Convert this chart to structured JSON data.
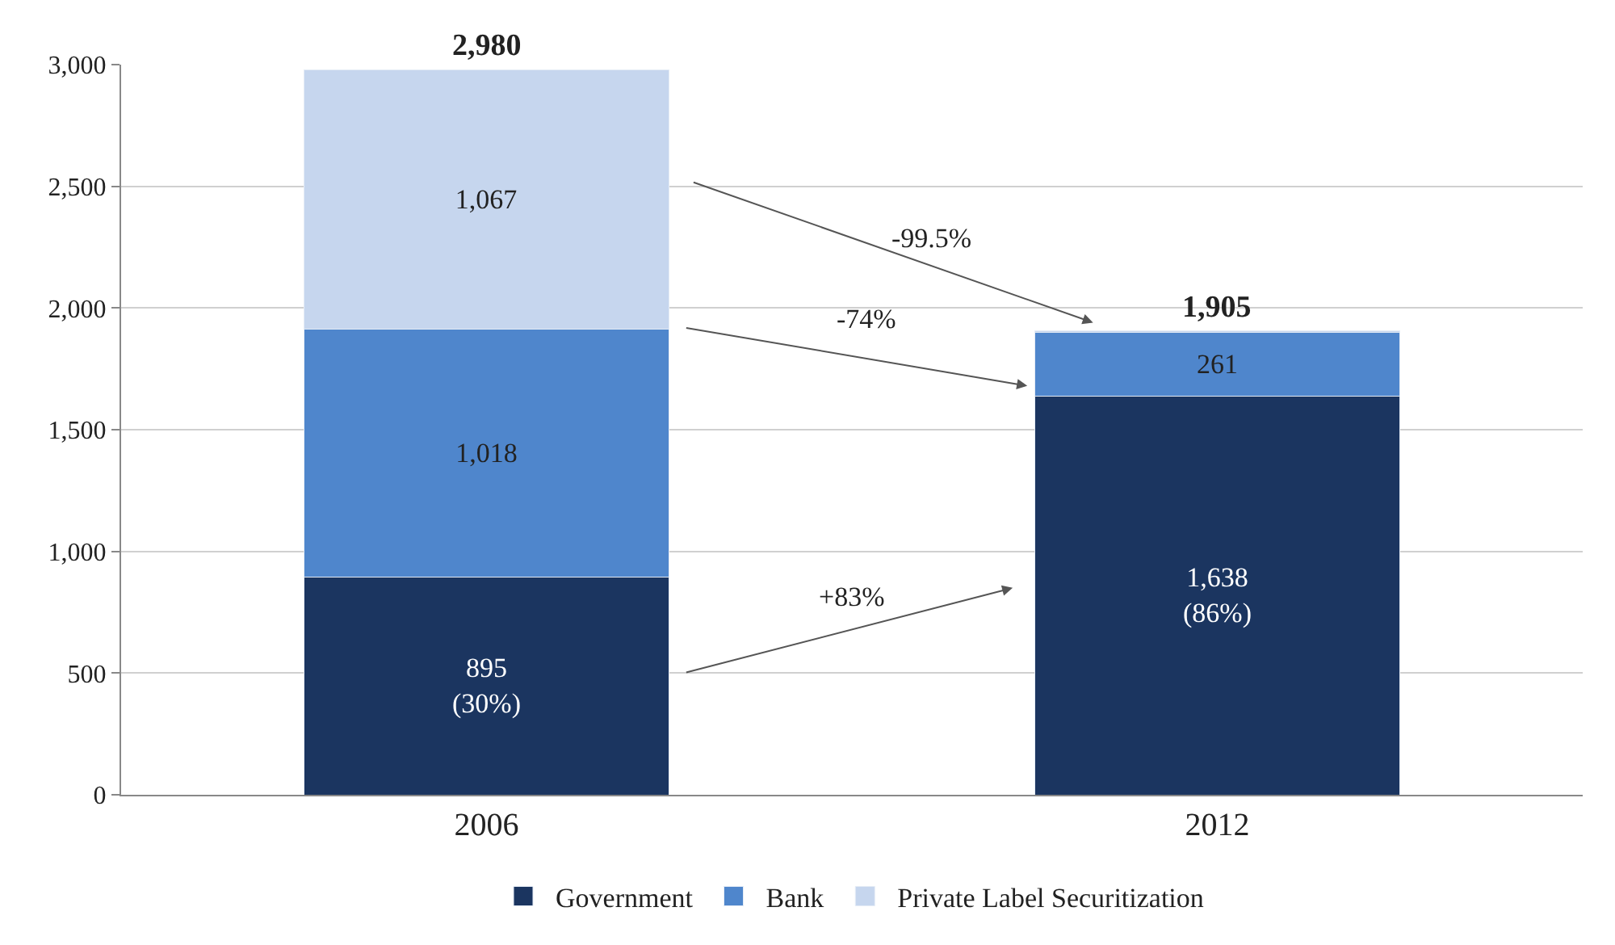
{
  "chart_data": {
    "type": "bar",
    "stacked": true,
    "categories": [
      "2006",
      "2012"
    ],
    "series": [
      {
        "name": "Government",
        "color": "#1b3560",
        "values": [
          895,
          1638
        ],
        "value_labels": [
          "895\n(30%)",
          "1,638\n(86%)"
        ]
      },
      {
        "name": "Bank",
        "color": "#4f86cc",
        "values": [
          1018,
          261
        ],
        "value_labels": [
          "1,018",
          "261"
        ]
      },
      {
        "name": "Private Label Securitization",
        "color": "#c6d6ee",
        "values": [
          1067,
          6
        ],
        "value_labels": [
          "1,067",
          null
        ]
      }
    ],
    "totals": [
      "2,980",
      "1,905"
    ],
    "ylim": [
      0,
      3000
    ],
    "yticks": [
      0,
      {
        "value": 500,
        "label": "500"
      },
      {
        "value": 1000,
        "label": "1,000"
      },
      {
        "value": 1500,
        "label": "1,500"
      },
      {
        "value": 2000,
        "label": "2,000"
      },
      {
        "value": 2500,
        "label": "2,500"
      },
      {
        "value": 3000,
        "label": "3,000"
      }
    ],
    "annotations": [
      "-99.5%",
      "-74%",
      "+83%"
    ],
    "grid": "y",
    "legend": "bottom"
  }
}
